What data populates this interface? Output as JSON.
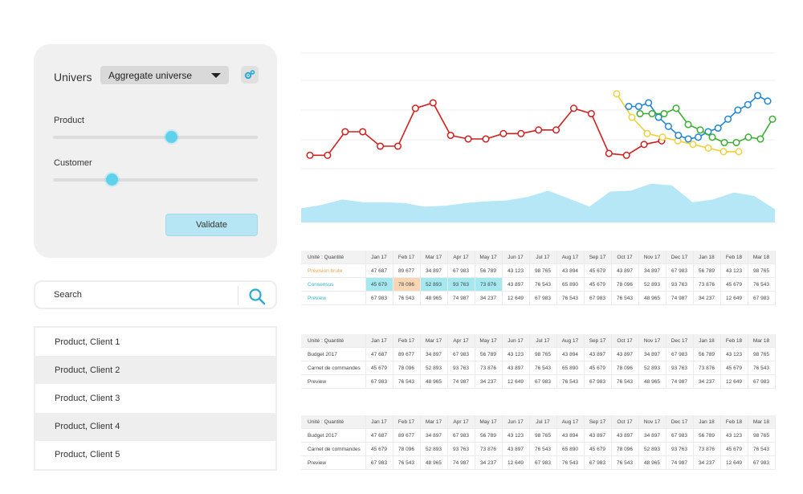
{
  "sidebar": {
    "univers_label": "Univers",
    "univers_select": "Aggregate universe",
    "slider_product_label": "Product",
    "slider_product_value": 0.58,
    "slider_customer_label": "Customer",
    "slider_customer_value": 0.29,
    "validate_label": "Validate"
  },
  "search": {
    "placeholder": "Search"
  },
  "products": [
    "Product, Client 1",
    "Product, Client 2",
    "Product, Client 3",
    "Product, Client 4",
    "Product, Client 5"
  ],
  "colors": {
    "accent": "#5ed2ec",
    "red": "#d0201f",
    "yellow": "#f0d03a",
    "blue": "#1f86d6",
    "green": "#3cad33",
    "area": "#b6e7f6"
  },
  "chart_data": [
    {
      "type": "line",
      "series": [
        {
          "color": "#d0201f",
          "points": [
            [
              0,
              0.3
            ],
            [
              1,
              0.3
            ],
            [
              2,
              1.6
            ],
            [
              3,
              1.6
            ],
            [
              4,
              0.8
            ],
            [
              5,
              0.8
            ],
            [
              6,
              2.9
            ],
            [
              7,
              3.2
            ],
            [
              8,
              1.4
            ],
            [
              9,
              1.2
            ],
            [
              10,
              1.2
            ],
            [
              11,
              1.5
            ],
            [
              12,
              1.5
            ],
            [
              13,
              1.7
            ],
            [
              14,
              1.7
            ],
            [
              15,
              2.9
            ],
            [
              16,
              2.6
            ],
            [
              17,
              0.4
            ],
            [
              18,
              0.3
            ],
            [
              19,
              0.9
            ],
            [
              20,
              1.1
            ]
          ]
        },
        {
          "color": "#f0d03a",
          "points": [
            [
              0,
              3.7
            ],
            [
              1,
              2.4
            ],
            [
              2,
              1.5
            ],
            [
              3,
              1.3
            ],
            [
              4,
              1.1
            ],
            [
              5,
              0.9
            ],
            [
              6,
              0.7
            ],
            [
              7,
              0.5
            ],
            [
              8,
              0.5
            ]
          ]
        },
        {
          "color": "#1f86d6",
          "points": [
            [
              0,
              3.0
            ],
            [
              1,
              3.0
            ],
            [
              2,
              3.2
            ],
            [
              3,
              2.4
            ],
            [
              4,
              1.9
            ],
            [
              5,
              1.4
            ],
            [
              6,
              1.2
            ],
            [
              7,
              1.3
            ],
            [
              8,
              1.6
            ],
            [
              9,
              1.8
            ],
            [
              10,
              2.3
            ],
            [
              11,
              2.8
            ],
            [
              12,
              3.1
            ],
            [
              13,
              3.6
            ],
            [
              14,
              3.3
            ]
          ]
        },
        {
          "color": "#3cad33",
          "points": [
            [
              0,
              2.6
            ],
            [
              1,
              2.6
            ],
            [
              2,
              2.6
            ],
            [
              3,
              2.9
            ],
            [
              4,
              2.0
            ],
            [
              5,
              1.7
            ],
            [
              6,
              1.3
            ],
            [
              7,
              1.0
            ],
            [
              8,
              1.0
            ],
            [
              9,
              1.3
            ],
            [
              10,
              1.2
            ],
            [
              11,
              2.3
            ]
          ]
        }
      ]
    },
    {
      "type": "area",
      "color": "#b6e7f6",
      "values": [
        0.32,
        0.4,
        0.52,
        0.46,
        0.46,
        0.44,
        0.36,
        0.38,
        0.44,
        0.48,
        0.5,
        0.58,
        0.72,
        0.54,
        0.36,
        0.7,
        0.72,
        0.88,
        0.84,
        0.46,
        0.52,
        0.68,
        0.6,
        0.3
      ]
    }
  ],
  "tables": [
    {
      "head_label": "Unité : Quantité",
      "months": [
        "Jan 17",
        "Feb 17",
        "Mar 17",
        "Apr 17",
        "May 17",
        "Jun 17",
        "Jul 17",
        "Aug 17",
        "Sep 17",
        "Oct 17",
        "Nov 17",
        "Dec 17",
        "Jan 18",
        "Feb 18",
        "Mar 18"
      ],
      "rows": [
        {
          "label": "Prévision brute",
          "label_color": "orange",
          "values": [
            "47 687",
            "89 677",
            "34 897",
            "67 983",
            "56 789",
            "43 123",
            "98 765",
            "43 894",
            "45 679",
            "43 897",
            "34 897",
            "67 983",
            "56 789",
            "43 123",
            "98 765"
          ]
        },
        {
          "label": "Consensus",
          "label_color": "blue",
          "values": [
            "45 679",
            "78 096",
            "52 893",
            "93 763",
            "73 876",
            "43 897",
            "76 543",
            "65 890",
            "45 679",
            "78 096",
            "52 893",
            "93 763",
            "73 876",
            "45 679",
            "76 543"
          ],
          "highlights": {
            "0": "cyan",
            "1": "peach",
            "2": "cyan",
            "3": "cyan",
            "4": "cyan"
          }
        },
        {
          "label": "Preview",
          "label_color": "cyan",
          "values": [
            "67 983",
            "76 543",
            "48 965",
            "74 987",
            "34 237",
            "12 649",
            "67 983",
            "76 543",
            "67 983",
            "76 543",
            "48 965",
            "74 987",
            "34 237",
            "12 649",
            "67 983"
          ]
        }
      ]
    },
    {
      "head_label": "Unité : Quantité",
      "months": [
        "Jan 17",
        "Feb 17",
        "Mar 17",
        "Apr 17",
        "May 17",
        "Jun 17",
        "Jul 17",
        "Aug 17",
        "Sep 17",
        "Oct 17",
        "Nov 17",
        "Dec 17",
        "Jan 18",
        "Feb 18",
        "Mar 18"
      ],
      "rows": [
        {
          "label": "Budget 2017",
          "values": [
            "47 687",
            "89 677",
            "34 897",
            "67 983",
            "56 789",
            "43 123",
            "98 765",
            "43 894",
            "43 897",
            "43 897",
            "34 897",
            "67 983",
            "56 789",
            "43 123",
            "98 765"
          ]
        },
        {
          "label": "Carnet de commandes",
          "values": [
            "45 679",
            "78 096",
            "52 893",
            "93 763",
            "73 876",
            "43 897",
            "76 543",
            "65 890",
            "45 679",
            "78 096",
            "52 893",
            "93 763",
            "73 876",
            "45 679",
            "76 543"
          ]
        },
        {
          "label": "Preview",
          "values": [
            "67 983",
            "76 543",
            "48 965",
            "74 987",
            "34 237",
            "12 649",
            "67 983",
            "76 543",
            "67 983",
            "76 543",
            "48 965",
            "74 987",
            "34 237",
            "12 649",
            "67 983"
          ]
        }
      ]
    },
    {
      "head_label": "Unité : Quantité",
      "months": [
        "Jan 17",
        "Feb 17",
        "Mar 17",
        "Apr 17",
        "May 17",
        "Jun 17",
        "Jul 17",
        "Aug 17",
        "Sep 17",
        "Oct 17",
        "Nov 17",
        "Dec 17",
        "Jan 18",
        "Feb 18",
        "Mar 18"
      ],
      "rows": [
        {
          "label": "Budget 2017",
          "values": [
            "47 687",
            "89 677",
            "34 897",
            "67 983",
            "56 789",
            "43 123",
            "98 765",
            "43 894",
            "43 897",
            "43 897",
            "34 897",
            "67 983",
            "56 789",
            "43 123",
            "98 765"
          ]
        },
        {
          "label": "Carnet de commandes",
          "values": [
            "45 679",
            "78 096",
            "52 893",
            "93 763",
            "73 876",
            "43 897",
            "76 543",
            "65 890",
            "45 679",
            "78 096",
            "52 893",
            "93 763",
            "73 876",
            "45 679",
            "76 543"
          ]
        },
        {
          "label": "Preview",
          "values": [
            "67 983",
            "76 543",
            "48 965",
            "74 987",
            "34 237",
            "12 649",
            "67 983",
            "76 543",
            "67 983",
            "76 543",
            "48 965",
            "74 987",
            "34 237",
            "12 649",
            "67 983"
          ]
        }
      ]
    }
  ]
}
